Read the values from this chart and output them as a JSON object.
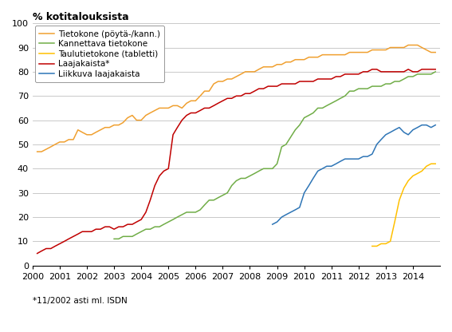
{
  "title": "% kotitalouksista",
  "footnote": "*11/2002 asti ml. ISDN",
  "ylim": [
    0,
    100
  ],
  "yticks": [
    0,
    10,
    20,
    30,
    40,
    50,
    60,
    70,
    80,
    90,
    100
  ],
  "xtick_labels": [
    "2000",
    "2001",
    "2002",
    "2003",
    "2004",
    "2005",
    "2006",
    "2007",
    "2008",
    "2009",
    "2010",
    "2011",
    "2012",
    "2013",
    "2014"
  ],
  "colors": {
    "tietokone": "#F0A030",
    "kannettava": "#70AD47",
    "tabletti": "#FFC000",
    "laajakaista": "#C00000",
    "liikkuva": "#2E75B6"
  },
  "legend_entries": [
    "Tietokone (pöytä-/kann.)",
    "Kannettava tietokone",
    "Taulutietokone (tabletti)",
    "Laajakaista*",
    "Liikkuva laajakaista"
  ],
  "tietokone_x": [
    2000.17,
    2000.33,
    2000.5,
    2000.67,
    2000.83,
    2001.0,
    2001.17,
    2001.33,
    2001.5,
    2001.67,
    2001.83,
    2002.0,
    2002.17,
    2002.33,
    2002.5,
    2002.67,
    2002.83,
    2003.0,
    2003.17,
    2003.33,
    2003.5,
    2003.67,
    2003.83,
    2004.0,
    2004.17,
    2004.33,
    2004.5,
    2004.67,
    2004.83,
    2005.0,
    2005.17,
    2005.33,
    2005.5,
    2005.67,
    2005.83,
    2006.0,
    2006.17,
    2006.33,
    2006.5,
    2006.67,
    2006.83,
    2007.0,
    2007.17,
    2007.33,
    2007.5,
    2007.67,
    2007.83,
    2008.0,
    2008.17,
    2008.33,
    2008.5,
    2008.67,
    2008.83,
    2009.0,
    2009.17,
    2009.33,
    2009.5,
    2009.67,
    2009.83,
    2010.0,
    2010.17,
    2010.33,
    2010.5,
    2010.67,
    2010.83,
    2011.0,
    2011.17,
    2011.33,
    2011.5,
    2011.67,
    2011.83,
    2012.0,
    2012.17,
    2012.33,
    2012.5,
    2012.67,
    2012.83,
    2013.0,
    2013.17,
    2013.33,
    2013.5,
    2013.67,
    2013.83,
    2014.0,
    2014.17,
    2014.33,
    2014.5,
    2014.67,
    2014.83
  ],
  "tietokone_y": [
    47,
    47,
    48,
    49,
    50,
    51,
    51,
    52,
    52,
    56,
    55,
    54,
    54,
    55,
    56,
    57,
    57,
    58,
    58,
    59,
    61,
    62,
    60,
    60,
    62,
    63,
    64,
    65,
    65,
    65,
    66,
    66,
    65,
    67,
    68,
    68,
    70,
    72,
    72,
    75,
    76,
    76,
    77,
    77,
    78,
    79,
    80,
    80,
    80,
    81,
    82,
    82,
    82,
    83,
    83,
    84,
    84,
    85,
    85,
    85,
    86,
    86,
    86,
    87,
    87,
    87,
    87,
    87,
    87,
    88,
    88,
    88,
    88,
    88,
    89,
    89,
    89,
    89,
    90,
    90,
    90,
    90,
    91,
    91,
    91,
    90,
    89,
    88,
    88
  ],
  "kannettava_x": [
    2003.0,
    2003.17,
    2003.33,
    2003.5,
    2003.67,
    2003.83,
    2004.0,
    2004.17,
    2004.33,
    2004.5,
    2004.67,
    2004.83,
    2005.0,
    2005.17,
    2005.33,
    2005.5,
    2005.67,
    2005.83,
    2006.0,
    2006.17,
    2006.33,
    2006.5,
    2006.67,
    2006.83,
    2007.0,
    2007.17,
    2007.33,
    2007.5,
    2007.67,
    2007.83,
    2008.0,
    2008.17,
    2008.33,
    2008.5,
    2008.67,
    2008.83,
    2009.0,
    2009.17,
    2009.33,
    2009.5,
    2009.67,
    2009.83,
    2010.0,
    2010.17,
    2010.33,
    2010.5,
    2010.67,
    2010.83,
    2011.0,
    2011.17,
    2011.33,
    2011.5,
    2011.67,
    2011.83,
    2012.0,
    2012.17,
    2012.33,
    2012.5,
    2012.67,
    2012.83,
    2013.0,
    2013.17,
    2013.33,
    2013.5,
    2013.67,
    2013.83,
    2014.0,
    2014.17,
    2014.33,
    2014.5,
    2014.67,
    2014.83
  ],
  "kannettava_y": [
    11,
    11,
    12,
    12,
    12,
    13,
    14,
    15,
    15,
    16,
    16,
    17,
    18,
    19,
    20,
    21,
    22,
    22,
    22,
    23,
    25,
    27,
    27,
    28,
    29,
    30,
    33,
    35,
    36,
    36,
    37,
    38,
    39,
    40,
    40,
    40,
    42,
    49,
    50,
    53,
    56,
    58,
    61,
    62,
    63,
    65,
    65,
    66,
    67,
    68,
    69,
    70,
    72,
    72,
    73,
    73,
    73,
    74,
    74,
    74,
    75,
    75,
    76,
    76,
    77,
    78,
    78,
    79,
    79,
    79,
    79,
    80
  ],
  "tabletti_x": [
    2012.5,
    2012.67,
    2012.83,
    2013.0,
    2013.17,
    2013.33,
    2013.5,
    2013.67,
    2013.83,
    2014.0,
    2014.17,
    2014.33,
    2014.5,
    2014.67,
    2014.83
  ],
  "tabletti_y": [
    8,
    8,
    9,
    9,
    10,
    18,
    27,
    32,
    35,
    37,
    38,
    39,
    41,
    42,
    42
  ],
  "laajakaista_x": [
    2000.17,
    2000.33,
    2000.5,
    2000.67,
    2000.83,
    2001.0,
    2001.17,
    2001.33,
    2001.5,
    2001.67,
    2001.83,
    2002.0,
    2002.17,
    2002.33,
    2002.5,
    2002.67,
    2002.83,
    2003.0,
    2003.17,
    2003.33,
    2003.5,
    2003.67,
    2003.83,
    2004.0,
    2004.17,
    2004.33,
    2004.5,
    2004.67,
    2004.83,
    2005.0,
    2005.17,
    2005.33,
    2005.5,
    2005.67,
    2005.83,
    2006.0,
    2006.17,
    2006.33,
    2006.5,
    2006.67,
    2006.83,
    2007.0,
    2007.17,
    2007.33,
    2007.5,
    2007.67,
    2007.83,
    2008.0,
    2008.17,
    2008.33,
    2008.5,
    2008.67,
    2008.83,
    2009.0,
    2009.17,
    2009.33,
    2009.5,
    2009.67,
    2009.83,
    2010.0,
    2010.17,
    2010.33,
    2010.5,
    2010.67,
    2010.83,
    2011.0,
    2011.17,
    2011.33,
    2011.5,
    2011.67,
    2011.83,
    2012.0,
    2012.17,
    2012.33,
    2012.5,
    2012.67,
    2012.83,
    2013.0,
    2013.17,
    2013.33,
    2013.5,
    2013.67,
    2013.83,
    2014.0,
    2014.17,
    2014.33,
    2014.5,
    2014.67,
    2014.83
  ],
  "laajakaista_y": [
    5,
    6,
    7,
    7,
    8,
    9,
    10,
    11,
    12,
    13,
    14,
    14,
    14,
    15,
    15,
    16,
    16,
    15,
    16,
    16,
    17,
    17,
    18,
    19,
    22,
    27,
    33,
    37,
    39,
    40,
    54,
    57,
    60,
    62,
    63,
    63,
    64,
    65,
    65,
    66,
    67,
    68,
    69,
    69,
    70,
    70,
    71,
    71,
    72,
    73,
    73,
    74,
    74,
    74,
    75,
    75,
    75,
    75,
    76,
    76,
    76,
    76,
    77,
    77,
    77,
    77,
    78,
    78,
    79,
    79,
    79,
    79,
    80,
    80,
    81,
    81,
    80,
    80,
    80,
    80,
    80,
    80,
    81,
    80,
    80,
    81,
    81,
    81,
    81
  ],
  "liikkuva_x": [
    2008.83,
    2009.0,
    2009.17,
    2009.33,
    2009.5,
    2009.67,
    2009.83,
    2010.0,
    2010.17,
    2010.33,
    2010.5,
    2010.67,
    2010.83,
    2011.0,
    2011.17,
    2011.33,
    2011.5,
    2011.67,
    2011.83,
    2012.0,
    2012.17,
    2012.33,
    2012.5,
    2012.67,
    2012.83,
    2013.0,
    2013.17,
    2013.33,
    2013.5,
    2013.67,
    2013.83,
    2014.0,
    2014.17,
    2014.33,
    2014.5,
    2014.67,
    2014.83
  ],
  "liikkuva_y": [
    17,
    18,
    20,
    21,
    22,
    23,
    24,
    30,
    33,
    36,
    39,
    40,
    41,
    41,
    42,
    43,
    44,
    44,
    44,
    44,
    45,
    45,
    46,
    50,
    52,
    54,
    55,
    56,
    57,
    55,
    54,
    56,
    57,
    58,
    58,
    57,
    58
  ]
}
